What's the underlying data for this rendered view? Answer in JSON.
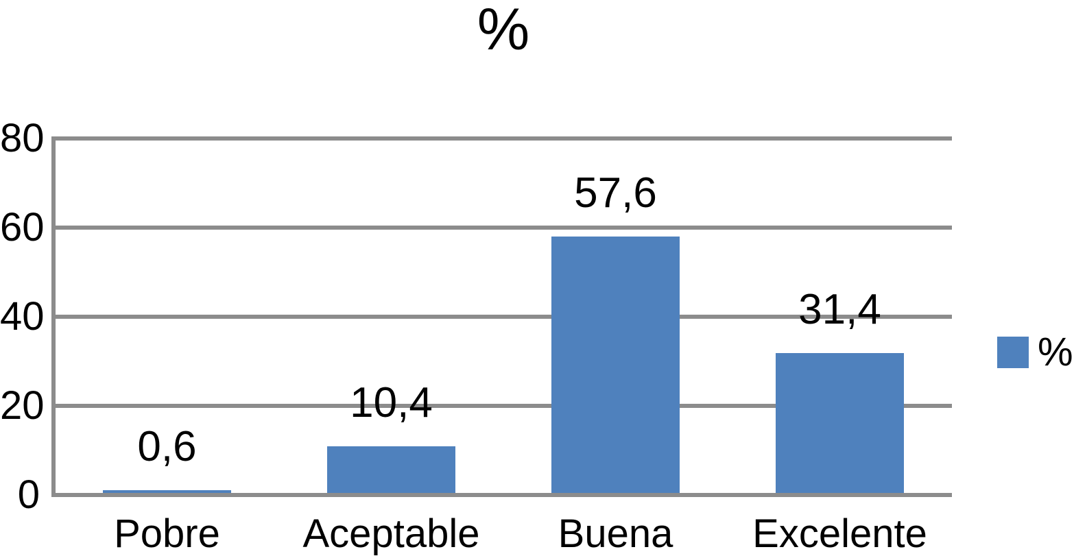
{
  "chart_data": {
    "type": "bar",
    "title": "%",
    "categories": [
      "Pobre",
      "Aceptable",
      "Buena",
      "Excelente"
    ],
    "series": [
      {
        "name": "%",
        "values": [
          0.6,
          10.4,
          57.6,
          31.4
        ]
      }
    ],
    "value_labels": [
      "0,6",
      "10,4",
      "57,6",
      "31,4"
    ],
    "xlabel": "",
    "ylabel": "",
    "ylim": [
      0,
      80
    ],
    "yticks": [
      0,
      20,
      40,
      60,
      80
    ],
    "grid": true,
    "legend": {
      "label": "%",
      "position": "right"
    },
    "colors": {
      "bar": "#4F81BD",
      "gridline": "#8C8C8C",
      "text": "#000000",
      "background": "#FFFFFF"
    }
  }
}
